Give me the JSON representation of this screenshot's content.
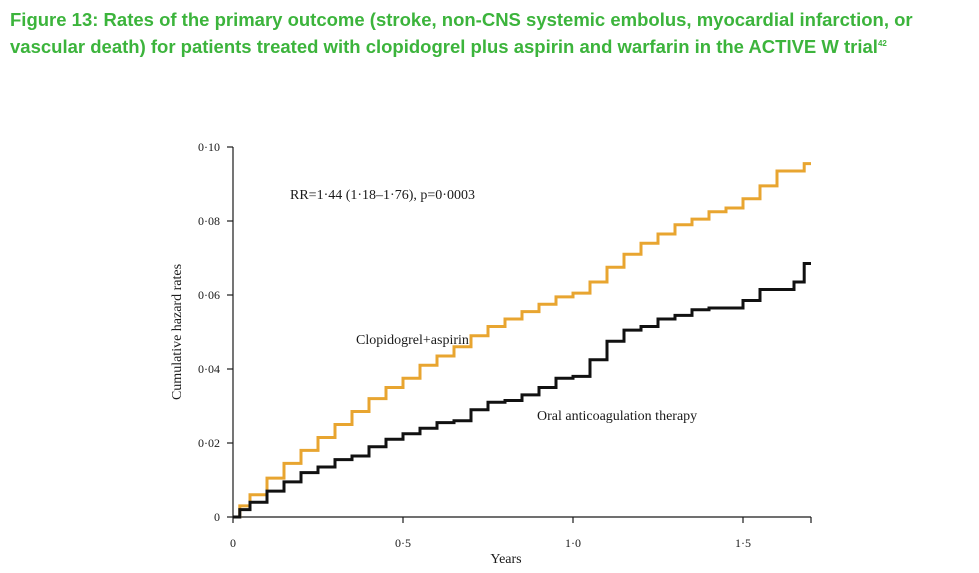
{
  "figure": {
    "title": "Figure 13: Rates of the primary outcome (stroke, non-CNS systemic embolus, myocardial infarction, or vascular death) for patients treated with clopidogrel plus aspirin and warfarin in the ACTIVE W trial",
    "ref": "42"
  },
  "chart_data": {
    "type": "line",
    "title": "",
    "xlabel": "Years",
    "ylabel": "Cumulative hazard rates",
    "xlim": [
      0,
      1.7
    ],
    "ylim": [
      0,
      0.1
    ],
    "x_ticks": [
      0,
      0.5,
      1.0,
      1.5
    ],
    "x_tick_labels": [
      "0",
      "0·5",
      "1·0",
      "1·5"
    ],
    "y_ticks": [
      0,
      0.02,
      0.04,
      0.06,
      0.08,
      0.1
    ],
    "y_tick_labels": [
      "0",
      "0·02",
      "0·04",
      "0·06",
      "0·08",
      "0·10"
    ],
    "grid": false,
    "annotation": "RR=1·44 (1·18–1·76), p=0·0003",
    "series": [
      {
        "name": "Clopidogrel+aspirin",
        "color": "#e8a530",
        "x": [
          0,
          0.02,
          0.05,
          0.1,
          0.15,
          0.2,
          0.25,
          0.3,
          0.35,
          0.4,
          0.45,
          0.5,
          0.55,
          0.6,
          0.65,
          0.7,
          0.75,
          0.8,
          0.85,
          0.9,
          0.95,
          1.0,
          1.05,
          1.1,
          1.15,
          1.2,
          1.25,
          1.3,
          1.35,
          1.4,
          1.45,
          1.5,
          1.55,
          1.6,
          1.65,
          1.68,
          1.7
        ],
        "values": [
          0,
          0.003,
          0.006,
          0.0105,
          0.0145,
          0.018,
          0.0215,
          0.025,
          0.0285,
          0.032,
          0.035,
          0.0375,
          0.041,
          0.0435,
          0.046,
          0.049,
          0.0515,
          0.0535,
          0.0555,
          0.0575,
          0.0595,
          0.0605,
          0.0635,
          0.0675,
          0.071,
          0.074,
          0.0765,
          0.079,
          0.0805,
          0.0825,
          0.0835,
          0.086,
          0.0895,
          0.0935,
          0.0935,
          0.0955,
          0.0955
        ]
      },
      {
        "name": "Oral anticoagulation therapy",
        "color": "#111111",
        "x": [
          0,
          0.02,
          0.05,
          0.1,
          0.15,
          0.2,
          0.25,
          0.3,
          0.35,
          0.4,
          0.45,
          0.5,
          0.55,
          0.6,
          0.65,
          0.7,
          0.75,
          0.8,
          0.85,
          0.9,
          0.95,
          1.0,
          1.05,
          1.1,
          1.15,
          1.2,
          1.25,
          1.3,
          1.35,
          1.4,
          1.45,
          1.5,
          1.55,
          1.6,
          1.65,
          1.68,
          1.7
        ],
        "values": [
          0,
          0.002,
          0.004,
          0.007,
          0.0095,
          0.012,
          0.0135,
          0.0155,
          0.0165,
          0.019,
          0.021,
          0.0225,
          0.024,
          0.0255,
          0.026,
          0.029,
          0.031,
          0.0315,
          0.033,
          0.035,
          0.0375,
          0.038,
          0.0425,
          0.0475,
          0.0505,
          0.0515,
          0.0535,
          0.0545,
          0.056,
          0.0565,
          0.0565,
          0.0585,
          0.0615,
          0.0615,
          0.0635,
          0.0685,
          0.0685
        ]
      }
    ]
  }
}
